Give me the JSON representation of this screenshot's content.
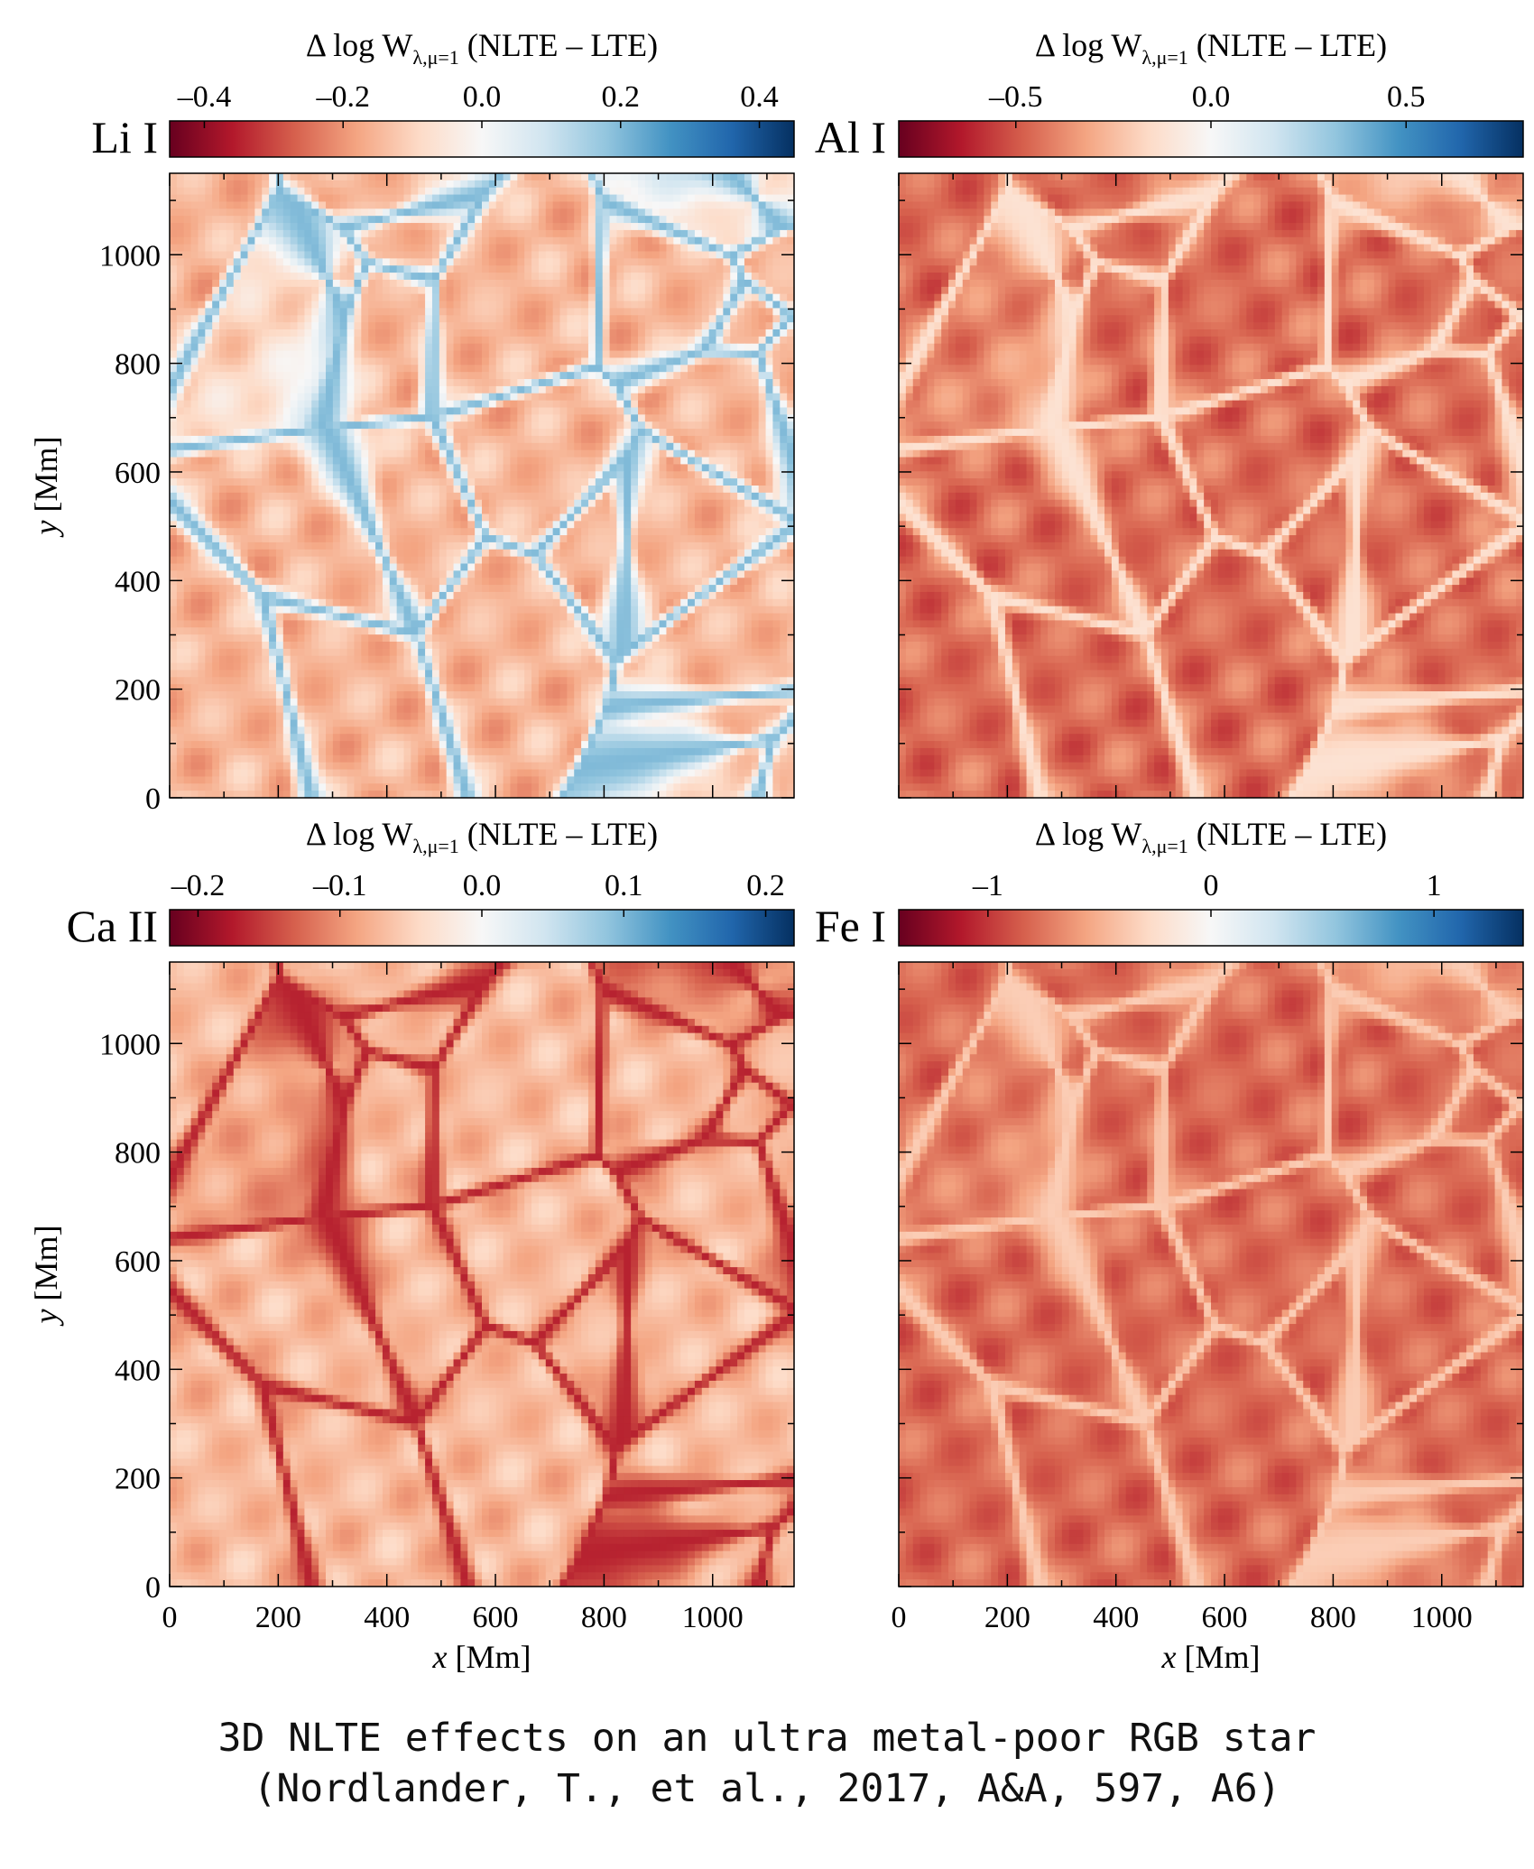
{
  "caption": {
    "line1": "3D NLTE effects on an ultra metal-poor RGB star",
    "line2": "(Nordlander, T., et al., 2017, A&A, 597, A6)"
  },
  "colors": {
    "cmap": [
      "#67001f",
      "#b2182b",
      "#d6604d",
      "#f4a582",
      "#fddbc7",
      "#f7f7f7",
      "#d1e5f0",
      "#92c5de",
      "#4393c3",
      "#2166ac",
      "#053061"
    ]
  },
  "chart_data": [
    {
      "type": "heatmap",
      "species": "Li I",
      "colorbar_title": "Δ log W",
      "colorbar_sub": "λ,μ=1",
      "colorbar_suffix": " (NLTE – LTE)",
      "clim": [
        -0.45,
        0.45
      ],
      "colorbar_ticks": [
        -0.4,
        -0.2,
        0.0,
        0.2,
        0.4
      ],
      "colorbar_tick_labels": [
        "–0.4",
        "–0.2",
        "0.0",
        "0.2",
        "0.4"
      ],
      "xlim": [
        0,
        1150
      ],
      "ylim": [
        0,
        1150
      ],
      "yticks": [
        0,
        200,
        400,
        600,
        800,
        1000
      ],
      "ytick_labels": [
        "0",
        "200",
        "400",
        "600",
        "800",
        "1000"
      ],
      "ylabel_italic": "y",
      "ylabel_rest": " [Mm]",
      "typical_value": -0.15,
      "cell_contrast": 0.07,
      "lane_value": 0.2
    },
    {
      "type": "heatmap",
      "species": "Al I",
      "colorbar_title": "Δ log W",
      "colorbar_sub": "λ,μ=1",
      "colorbar_suffix": " (NLTE – LTE)",
      "clim": [
        -0.8,
        0.8
      ],
      "colorbar_ticks": [
        -0.5,
        0.0,
        0.5
      ],
      "colorbar_tick_labels": [
        "–0.5",
        "0.0",
        "0.5"
      ],
      "xlim": [
        0,
        1150
      ],
      "ylim": [
        0,
        1150
      ],
      "typical_value": -0.45,
      "cell_contrast": 0.12,
      "lane_value": -0.12
    },
    {
      "type": "heatmap",
      "species": "Ca II",
      "colorbar_title": "Δ log W",
      "colorbar_sub": "λ,μ=1",
      "colorbar_suffix": " (NLTE – LTE)",
      "clim": [
        -0.22,
        0.22
      ],
      "colorbar_ticks": [
        -0.2,
        -0.1,
        0.0,
        0.1,
        0.2
      ],
      "colorbar_tick_labels": [
        "–0.2",
        "–0.1",
        "0.0",
        "0.1",
        "0.2"
      ],
      "xlim": [
        0,
        1150
      ],
      "ylim": [
        0,
        1150
      ],
      "xticks": [
        0,
        200,
        400,
        600,
        800,
        1000
      ],
      "xtick_labels": [
        "0",
        "200",
        "400",
        "600",
        "800",
        "1000"
      ],
      "yticks": [
        0,
        200,
        400,
        600,
        800,
        1000
      ],
      "ytick_labels": [
        "0",
        "200",
        "400",
        "600",
        "800",
        "1000"
      ],
      "xlabel_italic": "x",
      "xlabel_rest": " [Mm]",
      "ylabel_italic": "y",
      "ylabel_rest": " [Mm]",
      "typical_value": -0.07,
      "cell_contrast": 0.03,
      "lane_value": -0.17
    },
    {
      "type": "heatmap",
      "species": "Fe I",
      "colorbar_title": "Δ log W",
      "colorbar_sub": "λ,μ=1",
      "colorbar_suffix": " (NLTE – LTE)",
      "clim": [
        -1.4,
        1.4
      ],
      "colorbar_ticks": [
        -1,
        0,
        1
      ],
      "colorbar_tick_labels": [
        "–1",
        "0",
        "1"
      ],
      "xlim": [
        0,
        1150
      ],
      "ylim": [
        0,
        1150
      ],
      "xticks": [
        0,
        200,
        400,
        600,
        800,
        1000
      ],
      "xtick_labels": [
        "0",
        "200",
        "400",
        "600",
        "800",
        "1000"
      ],
      "xlabel_italic": "x",
      "xlabel_rest": " [Mm]",
      "typical_value": -0.8,
      "cell_contrast": 0.18,
      "lane_value": -0.35
    }
  ]
}
